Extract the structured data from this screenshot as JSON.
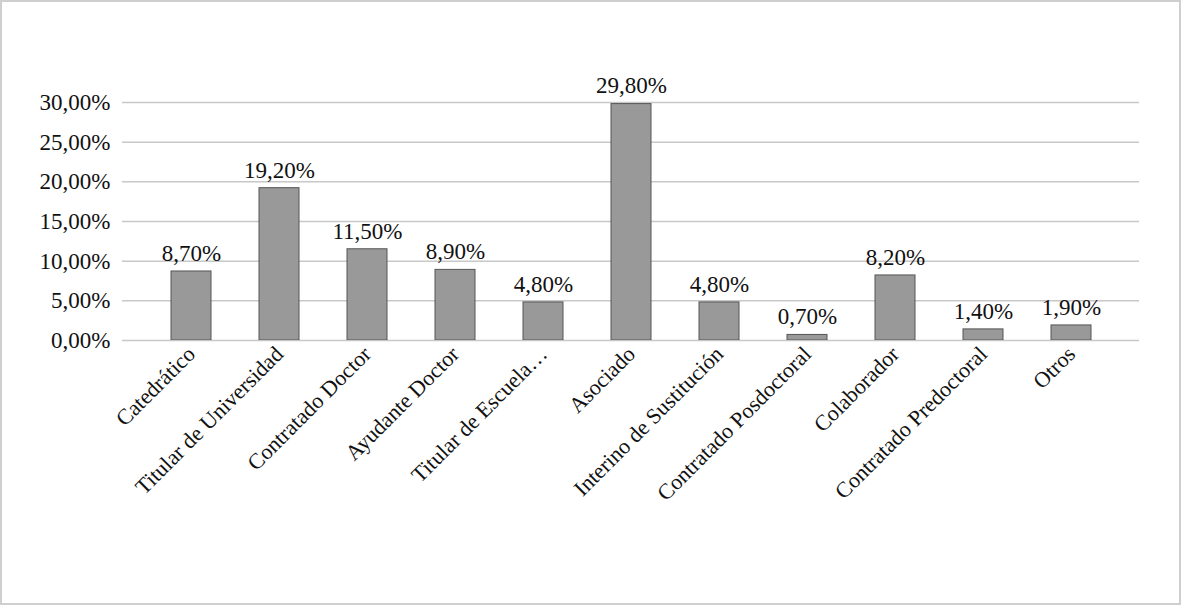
{
  "chart_data": {
    "type": "bar",
    "categories": [
      "Catedrático",
      "Titular de Universidad",
      "Contratado Doctor",
      "Ayudante Doctor",
      "Titular de Escuela…",
      "Asociado",
      "Interino de Sustitución",
      "Contratado Posdoctoral",
      "Colaborador",
      "Contratado Predoctoral",
      "Otros"
    ],
    "values": [
      8.7,
      19.2,
      11.5,
      8.9,
      4.8,
      29.8,
      4.8,
      0.7,
      8.2,
      1.4,
      1.9
    ],
    "value_labels": [
      "8,70%",
      "19,20%",
      "11,50%",
      "8,90%",
      "4,80%",
      "29,80%",
      "4,80%",
      "0,70%",
      "8,20%",
      "1,40%",
      "1,90%"
    ],
    "color": "#999999",
    "ylim": [
      0,
      30
    ],
    "yticks": [
      {
        "value": 0,
        "label": "0,00%"
      },
      {
        "value": 5,
        "label": "5,00%"
      },
      {
        "value": 10,
        "label": "10,00%"
      },
      {
        "value": 15,
        "label": "15,00%"
      },
      {
        "value": 20,
        "label": "20,00%"
      },
      {
        "value": 25,
        "label": "25,00%"
      },
      {
        "value": 30,
        "label": "30,00%"
      }
    ],
    "grid": true,
    "data_labels": true
  }
}
